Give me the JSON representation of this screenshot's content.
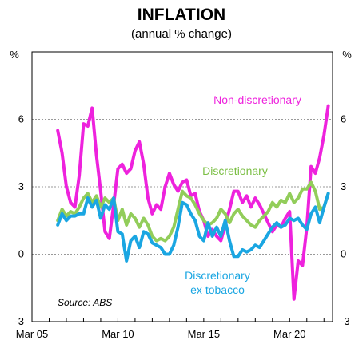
{
  "chart_data": {
    "type": "line",
    "title": "INFLATION",
    "subtitle": "(annual % change)",
    "y_unit_left": "%",
    "y_unit_right": "%",
    "ylim": [
      -3,
      9
    ],
    "yticks": [
      "-3",
      "0",
      "3",
      "6"
    ],
    "x_start_year": 2005,
    "x_end_year": 2022.5,
    "xticks": [
      {
        "label": "Mar 05",
        "year": 2005
      },
      {
        "label": "Mar 10",
        "year": 2010
      },
      {
        "label": "Mar 15",
        "year": 2015
      },
      {
        "label": "Mar 20",
        "year": 2020
      }
    ],
    "grid": "horizontal dashed",
    "source": "Source: ABS",
    "annotations": {
      "non_discretionary": "Non-discretionary",
      "discretionary": "Discretionary",
      "ex_tobacco_line1": "Discretionary",
      "ex_tobacco_line2": "ex tobacco"
    },
    "series": [
      {
        "name": "Non-discretionary",
        "color": "#ee22dd",
        "points": [
          [
            2006.5,
            5.5
          ],
          [
            2006.75,
            4.5
          ],
          [
            2007.0,
            3.0
          ],
          [
            2007.25,
            2.3
          ],
          [
            2007.5,
            2.1
          ],
          [
            2007.75,
            3.5
          ],
          [
            2008.0,
            5.8
          ],
          [
            2008.25,
            5.7
          ],
          [
            2008.5,
            6.5
          ],
          [
            2008.75,
            4.4
          ],
          [
            2009.0,
            2.8
          ],
          [
            2009.25,
            1.0
          ],
          [
            2009.5,
            0.7
          ],
          [
            2009.75,
            2.2
          ],
          [
            2010.0,
            3.8
          ],
          [
            2010.25,
            4.0
          ],
          [
            2010.5,
            3.6
          ],
          [
            2010.75,
            3.8
          ],
          [
            2011.0,
            4.6
          ],
          [
            2011.25,
            5.0
          ],
          [
            2011.5,
            4.0
          ],
          [
            2011.75,
            2.5
          ],
          [
            2012.0,
            1.8
          ],
          [
            2012.25,
            2.2
          ],
          [
            2012.5,
            2.0
          ],
          [
            2012.75,
            3.0
          ],
          [
            2013.0,
            3.6
          ],
          [
            2013.25,
            3.1
          ],
          [
            2013.5,
            2.8
          ],
          [
            2013.75,
            3.2
          ],
          [
            2014.0,
            3.3
          ],
          [
            2014.25,
            2.6
          ],
          [
            2014.5,
            2.7
          ],
          [
            2014.75,
            1.9
          ],
          [
            2015.0,
            1.5
          ],
          [
            2015.25,
            0.8
          ],
          [
            2015.5,
            1.1
          ],
          [
            2015.75,
            0.8
          ],
          [
            2016.0,
            0.6
          ],
          [
            2016.25,
            1.3
          ],
          [
            2016.5,
            2.0
          ],
          [
            2016.75,
            2.8
          ],
          [
            2017.0,
            2.8
          ],
          [
            2017.25,
            2.3
          ],
          [
            2017.5,
            2.6
          ],
          [
            2017.75,
            2.1
          ],
          [
            2018.0,
            2.5
          ],
          [
            2018.25,
            2.2
          ],
          [
            2018.5,
            1.8
          ],
          [
            2018.75,
            1.4
          ],
          [
            2019.0,
            1.0
          ],
          [
            2019.25,
            1.3
          ],
          [
            2019.5,
            1.2
          ],
          [
            2019.75,
            1.6
          ],
          [
            2020.0,
            1.9
          ],
          [
            2020.25,
            -2.0
          ],
          [
            2020.5,
            -0.3
          ],
          [
            2020.75,
            -0.5
          ],
          [
            2021.0,
            1.2
          ],
          [
            2021.25,
            3.9
          ],
          [
            2021.5,
            3.6
          ],
          [
            2021.75,
            4.3
          ],
          [
            2022.0,
            5.3
          ],
          [
            2022.25,
            6.6
          ]
        ]
      },
      {
        "name": "Discretionary",
        "color": "#92cd5a",
        "points": [
          [
            2006.5,
            1.5
          ],
          [
            2006.75,
            2.0
          ],
          [
            2007.0,
            1.7
          ],
          [
            2007.25,
            1.9
          ],
          [
            2007.5,
            1.8
          ],
          [
            2007.75,
            2.1
          ],
          [
            2008.0,
            2.5
          ],
          [
            2008.25,
            2.7
          ],
          [
            2008.5,
            2.3
          ],
          [
            2008.75,
            2.6
          ],
          [
            2009.0,
            2.1
          ],
          [
            2009.25,
            2.5
          ],
          [
            2009.5,
            2.3
          ],
          [
            2009.75,
            2.5
          ],
          [
            2010.0,
            1.5
          ],
          [
            2010.25,
            2.0
          ],
          [
            2010.5,
            1.3
          ],
          [
            2010.75,
            1.8
          ],
          [
            2011.0,
            1.6
          ],
          [
            2011.25,
            1.2
          ],
          [
            2011.5,
            1.6
          ],
          [
            2011.75,
            1.3
          ],
          [
            2012.0,
            0.8
          ],
          [
            2012.25,
            0.6
          ],
          [
            2012.5,
            0.7
          ],
          [
            2012.75,
            0.6
          ],
          [
            2013.0,
            0.8
          ],
          [
            2013.25,
            1.2
          ],
          [
            2013.5,
            2.0
          ],
          [
            2013.75,
            2.8
          ],
          [
            2014.0,
            2.6
          ],
          [
            2014.25,
            2.5
          ],
          [
            2014.5,
            2.2
          ],
          [
            2014.75,
            1.8
          ],
          [
            2015.0,
            1.5
          ],
          [
            2015.25,
            1.3
          ],
          [
            2015.5,
            1.4
          ],
          [
            2015.75,
            1.6
          ],
          [
            2016.0,
            2.0
          ],
          [
            2016.25,
            1.8
          ],
          [
            2016.5,
            1.4
          ],
          [
            2016.75,
            1.8
          ],
          [
            2017.0,
            2.0
          ],
          [
            2017.25,
            1.7
          ],
          [
            2017.5,
            1.5
          ],
          [
            2017.75,
            1.3
          ],
          [
            2018.0,
            1.2
          ],
          [
            2018.25,
            1.5
          ],
          [
            2018.5,
            1.7
          ],
          [
            2018.75,
            1.9
          ],
          [
            2019.0,
            2.3
          ],
          [
            2019.25,
            2.1
          ],
          [
            2019.5,
            2.4
          ],
          [
            2019.75,
            2.3
          ],
          [
            2020.0,
            2.7
          ],
          [
            2020.25,
            2.3
          ],
          [
            2020.5,
            2.5
          ],
          [
            2020.75,
            2.9
          ],
          [
            2021.0,
            2.9
          ],
          [
            2021.25,
            3.2
          ],
          [
            2021.5,
            2.8
          ],
          [
            2021.75,
            2.0
          ],
          [
            2022.0,
            2.1
          ],
          [
            2022.25,
            2.7
          ]
        ]
      },
      {
        "name": "Discretionary ex tobacco",
        "color": "#1aa6e2",
        "points": [
          [
            2006.5,
            1.3
          ],
          [
            2006.75,
            1.8
          ],
          [
            2007.0,
            1.5
          ],
          [
            2007.25,
            1.7
          ],
          [
            2007.5,
            1.7
          ],
          [
            2007.75,
            1.8
          ],
          [
            2008.0,
            1.8
          ],
          [
            2008.25,
            2.5
          ],
          [
            2008.5,
            2.1
          ],
          [
            2008.75,
            2.4
          ],
          [
            2009.0,
            1.6
          ],
          [
            2009.25,
            2.2
          ],
          [
            2009.5,
            2.0
          ],
          [
            2009.75,
            2.5
          ],
          [
            2010.0,
            1.0
          ],
          [
            2010.25,
            0.9
          ],
          [
            2010.5,
            -0.3
          ],
          [
            2010.75,
            0.6
          ],
          [
            2011.0,
            0.8
          ],
          [
            2011.25,
            0.3
          ],
          [
            2011.5,
            1.0
          ],
          [
            2011.75,
            0.9
          ],
          [
            2012.0,
            0.5
          ],
          [
            2012.25,
            0.4
          ],
          [
            2012.5,
            0.3
          ],
          [
            2012.75,
            0.0
          ],
          [
            2013.0,
            0.0
          ],
          [
            2013.25,
            0.4
          ],
          [
            2013.5,
            1.2
          ],
          [
            2013.75,
            2.3
          ],
          [
            2014.0,
            2.2
          ],
          [
            2014.25,
            1.8
          ],
          [
            2014.5,
            1.5
          ],
          [
            2014.75,
            0.8
          ],
          [
            2015.0,
            0.6
          ],
          [
            2015.25,
            1.4
          ],
          [
            2015.5,
            0.8
          ],
          [
            2015.75,
            1.2
          ],
          [
            2016.0,
            0.8
          ],
          [
            2016.25,
            1.5
          ],
          [
            2016.5,
            0.6
          ],
          [
            2016.75,
            -0.1
          ],
          [
            2017.0,
            -0.1
          ],
          [
            2017.25,
            0.2
          ],
          [
            2017.5,
            0.1
          ],
          [
            2017.75,
            0.2
          ],
          [
            2018.0,
            0.4
          ],
          [
            2018.25,
            0.3
          ],
          [
            2018.5,
            0.6
          ],
          [
            2018.75,
            0.9
          ],
          [
            2019.0,
            1.2
          ],
          [
            2019.25,
            1.4
          ],
          [
            2019.5,
            1.2
          ],
          [
            2019.75,
            1.3
          ],
          [
            2020.0,
            1.6
          ],
          [
            2020.25,
            1.5
          ],
          [
            2020.5,
            1.6
          ],
          [
            2020.75,
            1.3
          ],
          [
            2021.0,
            1.1
          ],
          [
            2021.25,
            1.8
          ],
          [
            2021.5,
            2.1
          ],
          [
            2021.75,
            1.4
          ],
          [
            2022.0,
            2.1
          ],
          [
            2022.25,
            2.7
          ]
        ]
      }
    ]
  }
}
